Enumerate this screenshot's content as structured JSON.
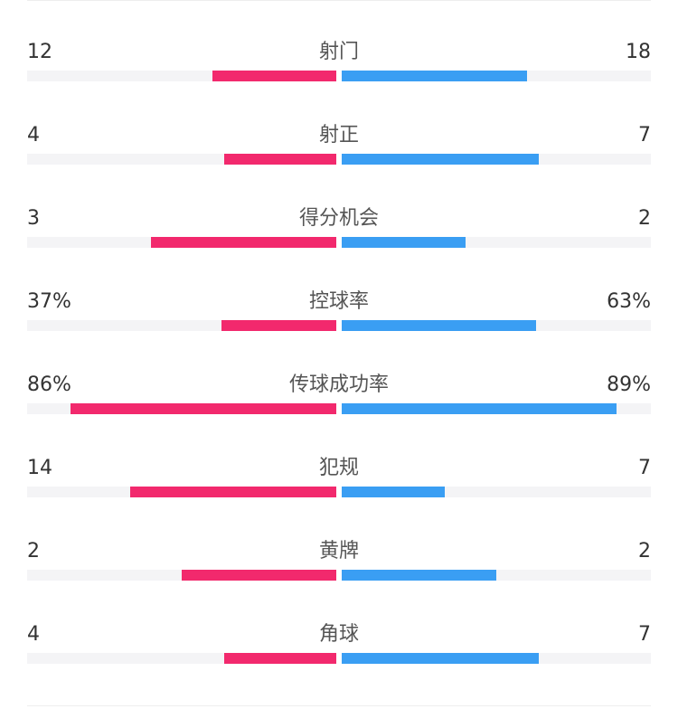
{
  "colors": {
    "home": "#f2296d",
    "away": "#3a9ef3"
  },
  "stats": [
    {
      "label": "射门",
      "left": "12",
      "right": "18",
      "left_fill": 0.4,
      "right_fill": 0.6
    },
    {
      "label": "射正",
      "left": "4",
      "right": "7",
      "left_fill": 0.364,
      "right_fill": 0.636
    },
    {
      "label": "得分机会",
      "left": "3",
      "right": "2",
      "left_fill": 0.6,
      "right_fill": 0.4
    },
    {
      "label": "控球率",
      "left": "37%",
      "right": "63%",
      "left_fill": 0.37,
      "right_fill": 0.63
    },
    {
      "label": "传球成功率",
      "left": "86%",
      "right": "89%",
      "left_fill": 0.86,
      "right_fill": 0.89
    },
    {
      "label": "犯规",
      "left": "14",
      "right": "7",
      "left_fill": 0.667,
      "right_fill": 0.333
    },
    {
      "label": "黄牌",
      "left": "2",
      "right": "2",
      "left_fill": 0.5,
      "right_fill": 0.5
    },
    {
      "label": "角球",
      "left": "4",
      "right": "7",
      "left_fill": 0.364,
      "right_fill": 0.636
    }
  ],
  "chart_data": {
    "type": "bar",
    "categories": [
      "射门",
      "射正",
      "得分机会",
      "控球率",
      "传球成功率",
      "犯规",
      "黄牌",
      "角球"
    ],
    "series": [
      {
        "values": [
          12,
          4,
          3,
          37,
          86,
          14,
          2,
          4
        ]
      },
      {
        "values": [
          18,
          7,
          2,
          63,
          89,
          7,
          2,
          7
        ]
      }
    ],
    "value_labels": [
      [
        "12",
        "18"
      ],
      [
        "4",
        "7"
      ],
      [
        "3",
        "2"
      ],
      [
        "37%",
        "63%"
      ],
      [
        "86%",
        "89%"
      ],
      [
        "14",
        "7"
      ],
      [
        "2",
        "2"
      ],
      [
        "4",
        "7"
      ]
    ]
  }
}
